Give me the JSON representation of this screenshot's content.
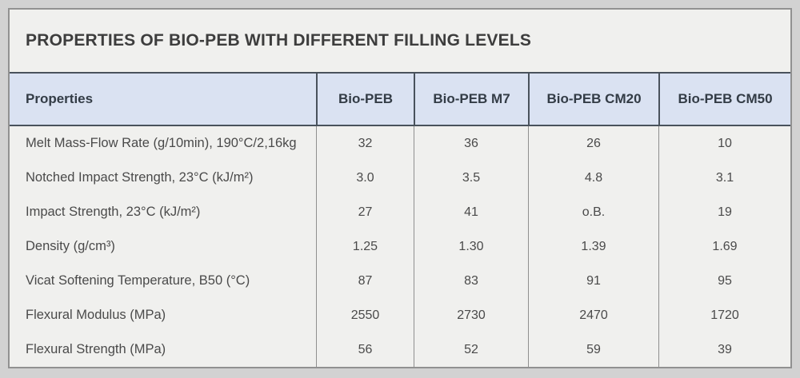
{
  "chart_data": {
    "type": "table",
    "title": "PROPERTIES OF BIO-PEB WITH DIFFERENT FILLING LEVELS",
    "columns": [
      "Properties",
      "Bio-PEB",
      "Bio-PEB M7",
      "Bio-PEB CM20",
      "Bio-PEB CM50"
    ],
    "rows": [
      {
        "property": "Melt Mass-Flow Rate (g/10min), 190°C/2,16kg",
        "values": [
          "32",
          "36",
          "26",
          "10"
        ]
      },
      {
        "property": "Notched Impact Strength, 23°C (kJ/m²)",
        "values": [
          "3.0",
          "3.5",
          "4.8",
          "3.1"
        ]
      },
      {
        "property": "Impact Strength, 23°C (kJ/m²)",
        "values": [
          "27",
          "41",
          "o.B.",
          "19"
        ]
      },
      {
        "property": "Density (g/cm³)",
        "values": [
          "1.25",
          "1.30",
          "1.39",
          "1.69"
        ]
      },
      {
        "property": "Vicat Softening Temperature, B50 (°C)",
        "values": [
          "87",
          "83",
          "91",
          "95"
        ]
      },
      {
        "property": "Flexural Modulus (MPa)",
        "values": [
          "2550",
          "2730",
          "2470",
          "1720"
        ]
      },
      {
        "property": "Flexural Strength (MPa)",
        "values": [
          "56",
          "52",
          "59",
          "39"
        ]
      }
    ],
    "layout": {
      "grid": "vertical-separators-only",
      "header_position": "top"
    }
  },
  "colors": {
    "page_background": "#d2d2d2",
    "card_background": "#f0f0ee",
    "card_border": "#919191",
    "header_background": "#dae2f2",
    "header_border": "#49525c",
    "body_separator": "#8f8f8f",
    "title_text": "#3d3d3d",
    "header_text": "#333c46",
    "body_text": "#4a4a4a"
  }
}
